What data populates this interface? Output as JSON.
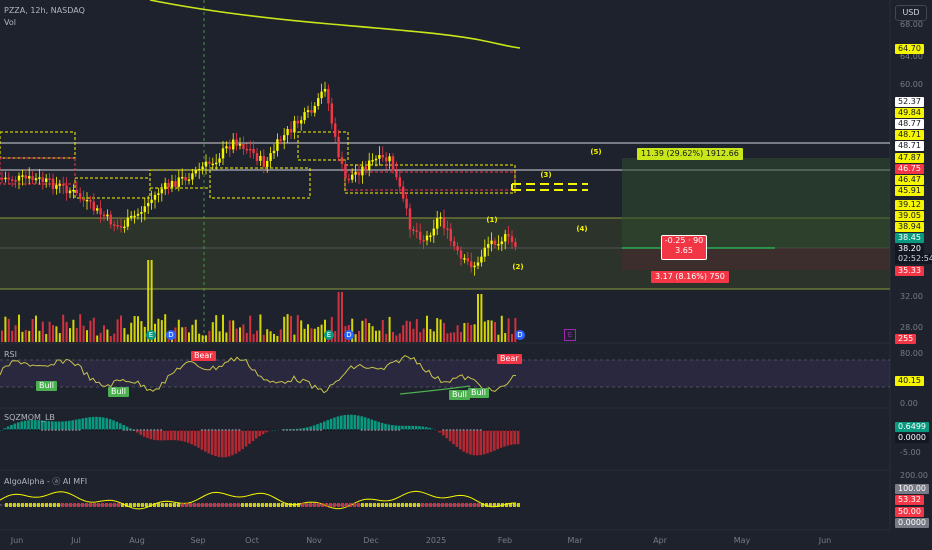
{
  "header": {
    "symbol_line": "PZZA, 12h, NASDAQ",
    "vol_label": "Vol",
    "currency_button": "USD"
  },
  "indicators": {
    "rsi": "RSI",
    "sqzmom": "SQZMOM_LB",
    "algo": "AlgoAlpha - ⓐ AI MFI"
  },
  "price_scale": {
    "ticks": [
      "68.00",
      "64.00",
      "60.00",
      "56.00",
      "52.00",
      "48.00",
      "44.00",
      "40.00",
      "36.00",
      "32.00",
      "28.00"
    ]
  },
  "price_tags": [
    {
      "text": "64.70",
      "bg": "#f5f500",
      "fg": "#131722"
    },
    {
      "text": "52.37",
      "bg": "#ffffff",
      "fg": "#131722"
    },
    {
      "text": "49.84",
      "bg": "#f5f500",
      "fg": "#131722"
    },
    {
      "text": "48.77",
      "bg": "#ffffff",
      "fg": "#131722"
    },
    {
      "text": "48.71",
      "bg": "#f5f500",
      "fg": "#131722"
    },
    {
      "text": "48.71",
      "bg": "#ffffff",
      "fg": "#131722"
    },
    {
      "text": "47.87",
      "bg": "#f5f500",
      "fg": "#131722"
    },
    {
      "text": "46.75",
      "bg": "#f23645",
      "fg": "#ffffff"
    },
    {
      "text": "46.47",
      "bg": "#f5f500",
      "fg": "#131722"
    },
    {
      "text": "45.91",
      "bg": "#f5f500",
      "fg": "#131722"
    },
    {
      "text": "39.12",
      "bg": "#f5f500",
      "fg": "#131722"
    },
    {
      "text": "39.05",
      "bg": "#f5f500",
      "fg": "#131722"
    },
    {
      "text": "38.94",
      "bg": "#f5f500",
      "fg": "#131722"
    },
    {
      "text": "38.45",
      "bg": "#089981",
      "fg": "#ffffff"
    },
    {
      "text": "38.20",
      "bg": "#131722",
      "fg": "#ffffff"
    },
    {
      "text": "02:52:54",
      "bg": "#131722",
      "fg": "#d1d4dc"
    },
    {
      "text": "35.33",
      "bg": "#f23645",
      "fg": "#ffffff"
    },
    {
      "text": "255",
      "bg": "#f23645",
      "fg": "#ffffff"
    }
  ],
  "rsi_scale": [
    "80.00",
    "40.15",
    "0.00"
  ],
  "rsi_value": "40.15",
  "sqz_scale": [
    "0.6499",
    "0.0000",
    "-5.00"
  ],
  "algo_scale": [
    "200.00",
    "100.00",
    "53.32",
    "50.00",
    "0.0000"
  ],
  "x_axis": [
    "Jun",
    "Jul",
    "Aug",
    "Sep",
    "Oct",
    "Nov",
    "Dec",
    "2025",
    "Feb",
    "Mar",
    "Apr",
    "May",
    "Jun"
  ],
  "wave_labels": [
    "(5)",
    "(3)",
    "(4)",
    "(1)",
    "(2)"
  ],
  "position_tool": {
    "target_label": "11.39 (29.62%) 1912.66",
    "center_label_1": "-0.25 · 90",
    "center_label_2": "3.65",
    "stop_label": "3.17 (8.16%) 750"
  },
  "rsi_signals": [
    "Bull",
    "Bull",
    "Bear",
    "Bull",
    "Bull",
    "Bear"
  ],
  "event_markers": [
    "E",
    "D",
    "E",
    "D",
    "D",
    "E"
  ],
  "colors": {
    "background": "#1e222d",
    "bull": "#f5f500",
    "bear": "#f23645",
    "green": "#089981",
    "ma": "#c8e619"
  }
}
